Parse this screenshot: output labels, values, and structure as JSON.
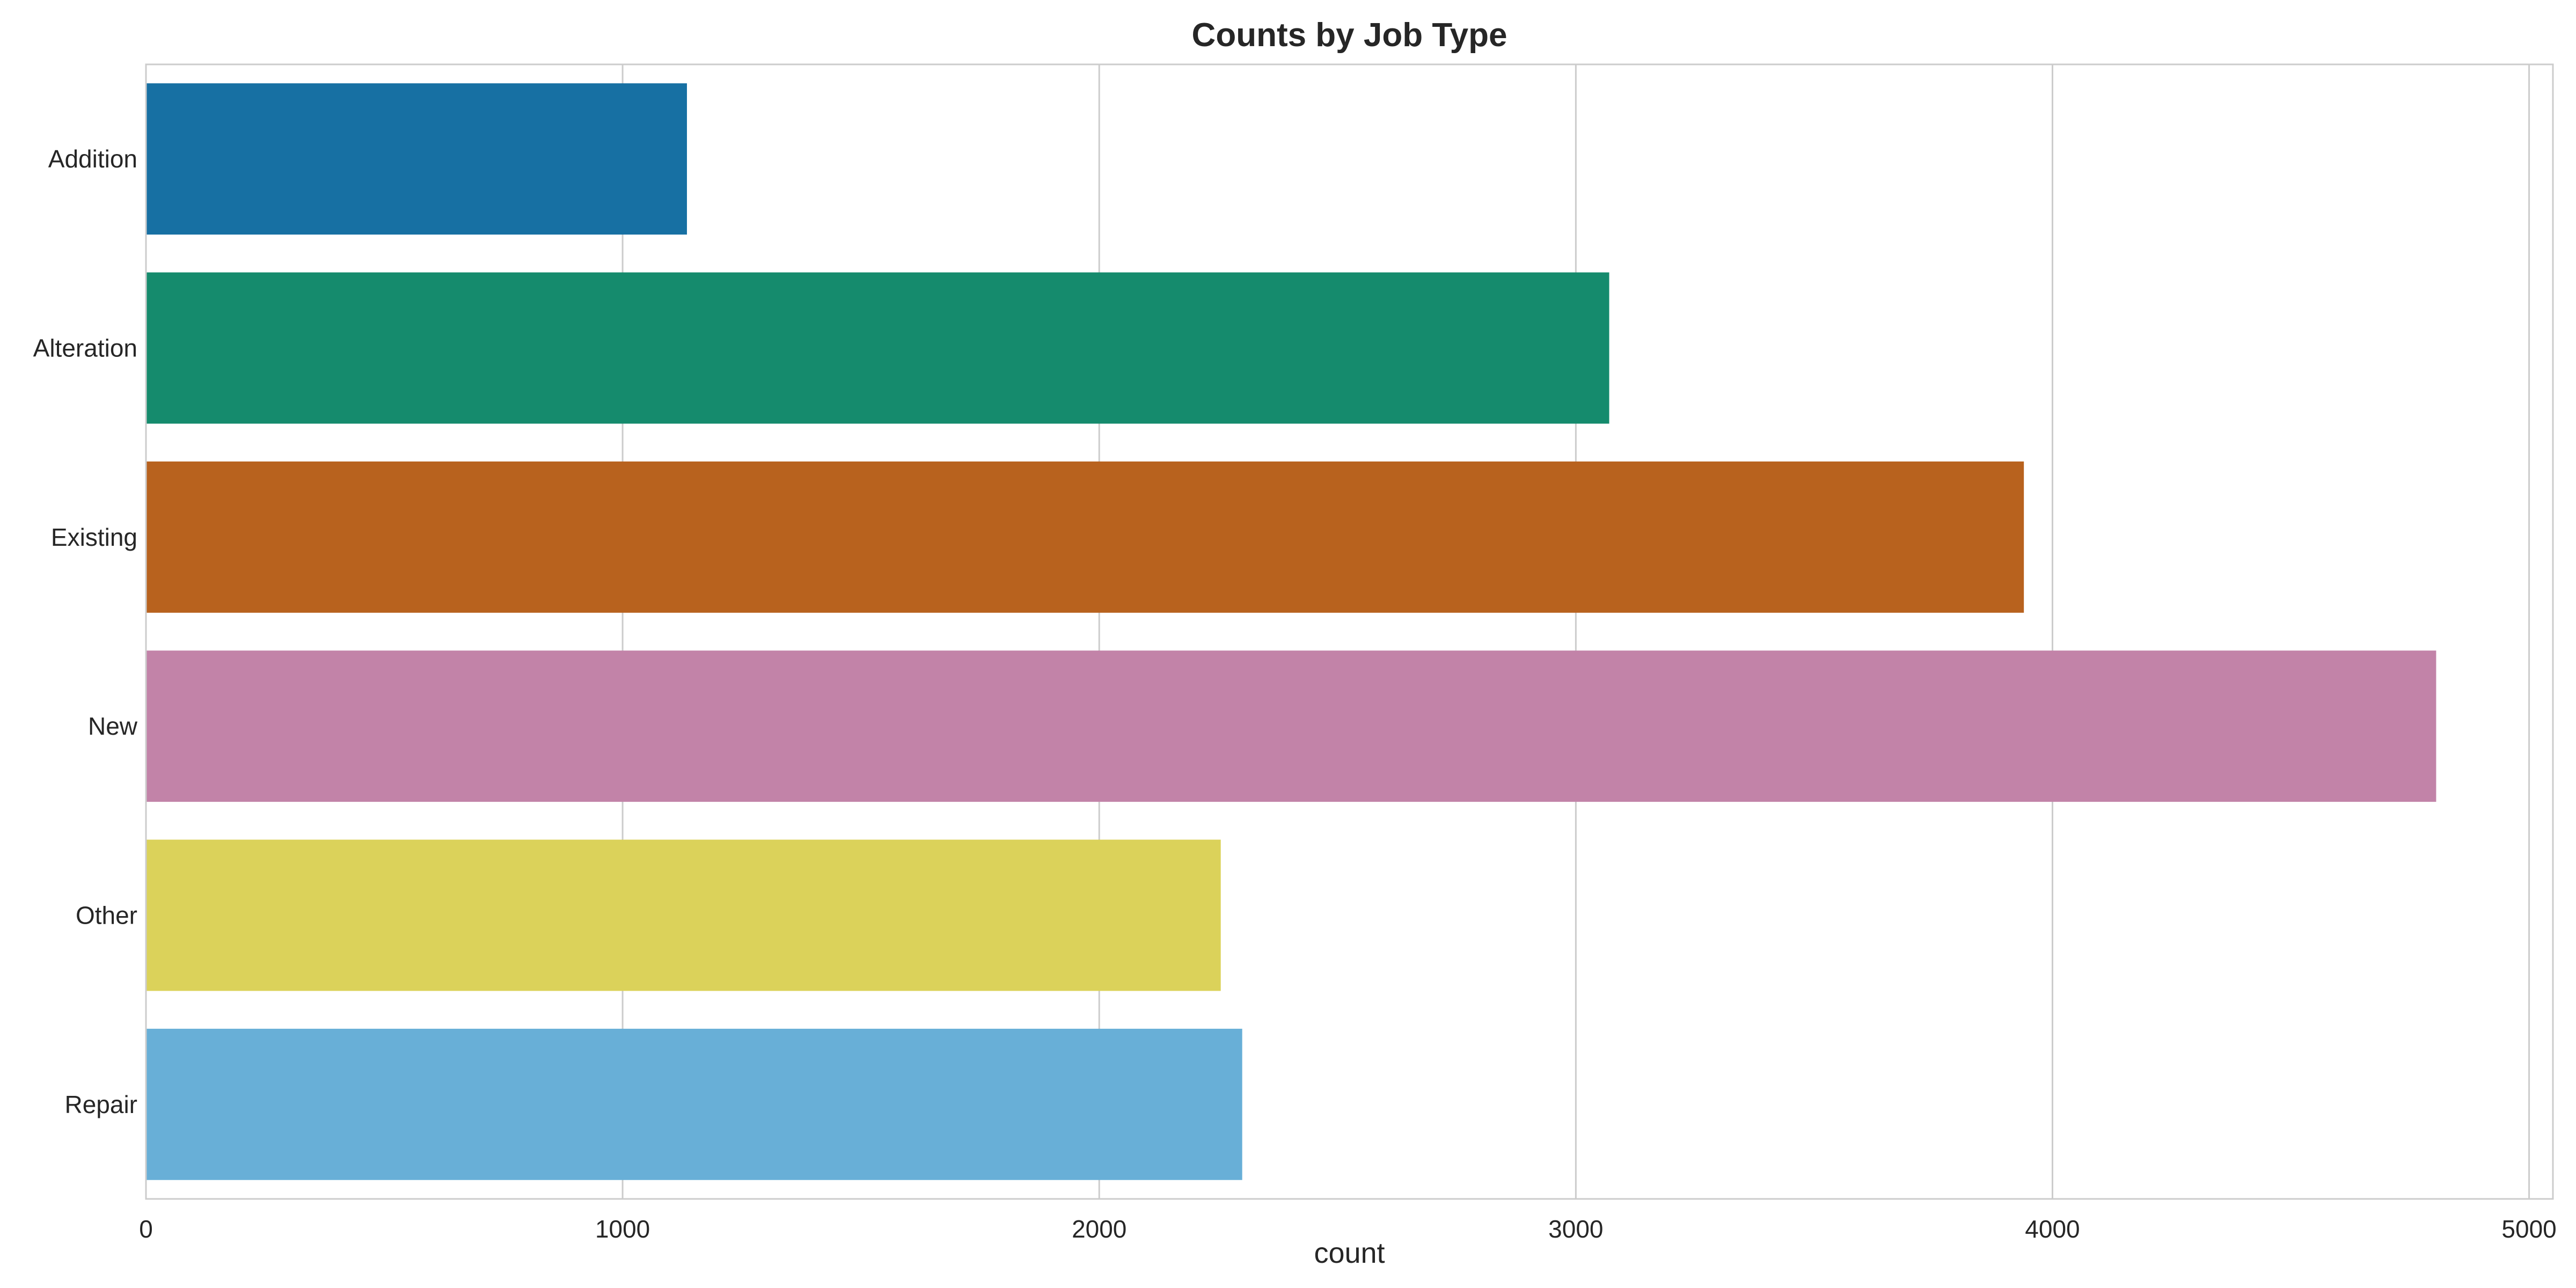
{
  "chart_data": {
    "type": "bar",
    "orientation": "horizontal",
    "title": "Counts by Job Type",
    "xlabel": "count",
    "ylabel": "",
    "categories": [
      "Addition",
      "Alteration",
      "Existing",
      "New",
      "Other",
      "Repair"
    ],
    "values": [
      1135,
      3070,
      3940,
      4805,
      2255,
      2300
    ],
    "colors": [
      "#1770a3",
      "#158b6d",
      "#b8621e",
      "#c283a8",
      "#dbd25a",
      "#68afd7"
    ],
    "xlim": [
      0,
      5050
    ],
    "xticks": [
      0,
      1000,
      2000,
      3000,
      4000,
      5000
    ],
    "grid": true,
    "legend": "none"
  }
}
